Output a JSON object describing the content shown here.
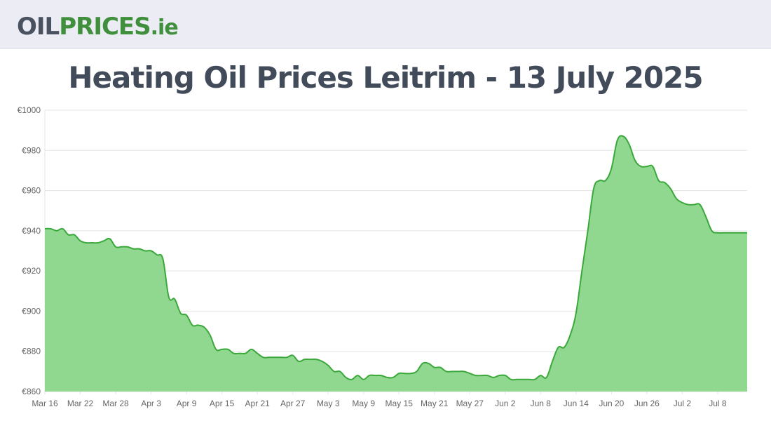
{
  "header": {
    "logo": {
      "part1": "OIL",
      "part2": "PRICES",
      "part3": ".ie"
    }
  },
  "title": "Heating Oil Prices Leitrim - 13 July 2025",
  "colors": {
    "header_bg": "#ecedf4",
    "line": "#3aa83a",
    "fill": "#90d790",
    "grid": "#e5e5e5",
    "text": "#424b5a"
  },
  "chart_data": {
    "type": "area",
    "title": "Heating Oil Prices Leitrim - 13 July 2025",
    "xlabel": "",
    "ylabel": "",
    "ylim": [
      860,
      1000
    ],
    "y_ticks": [
      860,
      880,
      900,
      920,
      940,
      960,
      980,
      1000
    ],
    "y_tick_labels": [
      "€860",
      "€880",
      "€900",
      "€920",
      "€940",
      "€960",
      "€980",
      "€1000"
    ],
    "x_ticks": [
      "Mar 16",
      "Mar 22",
      "Mar 28",
      "Apr 3",
      "Apr 9",
      "Apr 15",
      "Apr 21",
      "Apr 27",
      "May 3",
      "May 9",
      "May 15",
      "May 21",
      "May 27",
      "Jun 2",
      "Jun 8",
      "Jun 14",
      "Jun 20",
      "Jun 26",
      "Jul 2",
      "Jul 8"
    ],
    "grid": true,
    "legend": "none",
    "series": [
      {
        "x": [
          "2025-03-16",
          "2025-03-17",
          "2025-03-18",
          "2025-03-19",
          "2025-03-20",
          "2025-03-21",
          "2025-03-22",
          "2025-03-23",
          "2025-03-24",
          "2025-03-25",
          "2025-03-26",
          "2025-03-27",
          "2025-03-28",
          "2025-03-29",
          "2025-03-30",
          "2025-03-31",
          "2025-04-01",
          "2025-04-02",
          "2025-04-03",
          "2025-04-04",
          "2025-04-05",
          "2025-04-06",
          "2025-04-07",
          "2025-04-08",
          "2025-04-09",
          "2025-04-10",
          "2025-04-11",
          "2025-04-12",
          "2025-04-13",
          "2025-04-14",
          "2025-04-15",
          "2025-04-16",
          "2025-04-17",
          "2025-04-18",
          "2025-04-19",
          "2025-04-20",
          "2025-04-21",
          "2025-04-22",
          "2025-04-23",
          "2025-04-24",
          "2025-04-25",
          "2025-04-26",
          "2025-04-27",
          "2025-04-28",
          "2025-04-29",
          "2025-04-30",
          "2025-05-01",
          "2025-05-02",
          "2025-05-03",
          "2025-05-04",
          "2025-05-05",
          "2025-05-06",
          "2025-05-07",
          "2025-05-08",
          "2025-05-09",
          "2025-05-10",
          "2025-05-11",
          "2025-05-12",
          "2025-05-13",
          "2025-05-14",
          "2025-05-15",
          "2025-05-16",
          "2025-05-17",
          "2025-05-18",
          "2025-05-19",
          "2025-05-20",
          "2025-05-21",
          "2025-05-22",
          "2025-05-23",
          "2025-05-24",
          "2025-05-25",
          "2025-05-26",
          "2025-05-27",
          "2025-05-28",
          "2025-05-29",
          "2025-05-30",
          "2025-05-31",
          "2025-06-01",
          "2025-06-02",
          "2025-06-03",
          "2025-06-04",
          "2025-06-05",
          "2025-06-06",
          "2025-06-07",
          "2025-06-08",
          "2025-06-09",
          "2025-06-10",
          "2025-06-11",
          "2025-06-12",
          "2025-06-13",
          "2025-06-14",
          "2025-06-15",
          "2025-06-16",
          "2025-06-17",
          "2025-06-18",
          "2025-06-19",
          "2025-06-20",
          "2025-06-21",
          "2025-06-22",
          "2025-06-23",
          "2025-06-24",
          "2025-06-25",
          "2025-06-26",
          "2025-06-27",
          "2025-06-28",
          "2025-06-29",
          "2025-06-30",
          "2025-07-01",
          "2025-07-02",
          "2025-07-03",
          "2025-07-04",
          "2025-07-05",
          "2025-07-06",
          "2025-07-07",
          "2025-07-08",
          "2025-07-09",
          "2025-07-10",
          "2025-07-11",
          "2025-07-12",
          "2025-07-13"
        ],
        "y": [
          941,
          941,
          940,
          941,
          938,
          938,
          935,
          934,
          934,
          934,
          935,
          936,
          932,
          932,
          932,
          931,
          931,
          930,
          930,
          928,
          926,
          907,
          906,
          899,
          898,
          893,
          893,
          892,
          888,
          881,
          881,
          881,
          879,
          879,
          879,
          881,
          879,
          877,
          877,
          877,
          877,
          877,
          878,
          875,
          876,
          876,
          876,
          875,
          873,
          870,
          870,
          867,
          866,
          868,
          866,
          868,
          868,
          868,
          867,
          867,
          869,
          869,
          869,
          870,
          874,
          874,
          872,
          872,
          870,
          870,
          870,
          870,
          869,
          868,
          868,
          868,
          867,
          868,
          868,
          866,
          866,
          866,
          866,
          866,
          868,
          867,
          875,
          882,
          882,
          888,
          899,
          920,
          940,
          961,
          965,
          965,
          971,
          985,
          987,
          983,
          975,
          972,
          972,
          972,
          965,
          964,
          961,
          956,
          954,
          953,
          953,
          953,
          947,
          940,
          939,
          939,
          939,
          939,
          939,
          939
        ]
      }
    ]
  }
}
